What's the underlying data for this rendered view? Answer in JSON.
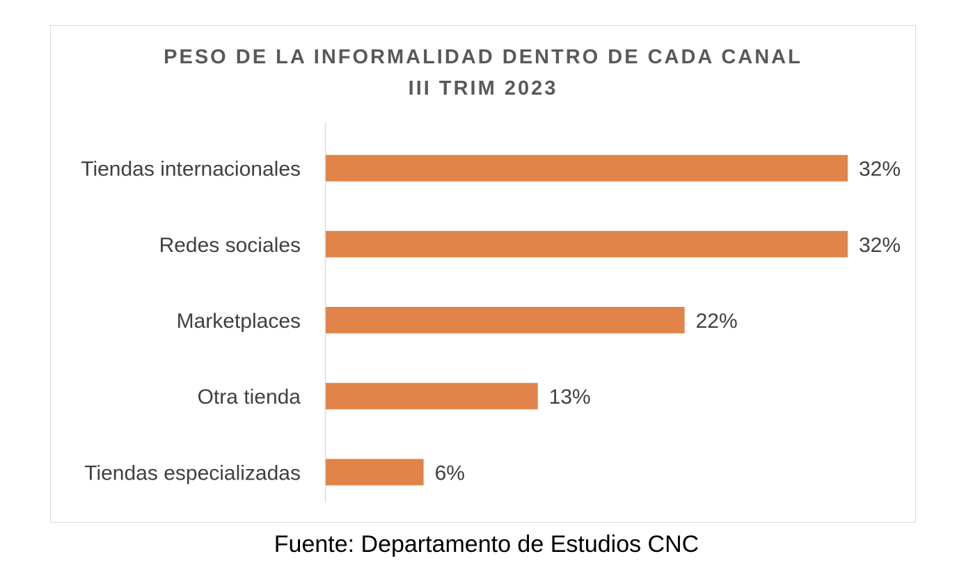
{
  "chart_data": {
    "type": "bar",
    "orientation": "horizontal",
    "title": "PESO DE LA INFORMALIDAD DENTRO DE CADA CANAL",
    "subtitle": "III TRIM 2023",
    "categories": [
      "Tiendas internacionales",
      "Redes sociales",
      "Marketplaces",
      "Otra tienda",
      "Tiendas especializadas"
    ],
    "values": [
      32,
      32,
      22,
      13,
      6
    ],
    "data_labels": [
      "32%",
      "32%",
      "22%",
      "13%",
      "6%"
    ],
    "xlabel": "",
    "ylabel": "",
    "xlim": [
      0,
      32
    ],
    "grid": false,
    "legend": "none",
    "bar_color": "#E0844A"
  },
  "source": "Fuente: Departamento de Estudios CNC"
}
